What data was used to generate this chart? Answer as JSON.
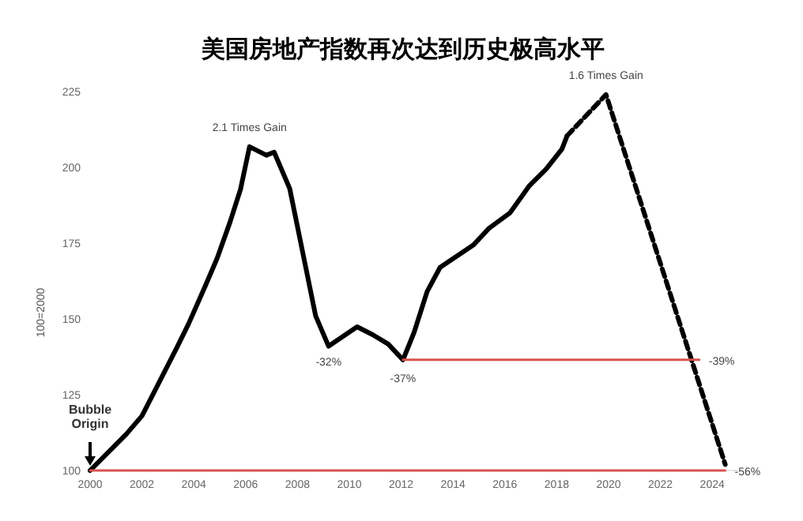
{
  "chart_data": {
    "type": "line",
    "title": "美国房地产指数再次达到历史极高水平",
    "ylabel": "100=2000",
    "xlim": [
      2000,
      2025
    ],
    "ylim": [
      100,
      225
    ],
    "xticks": [
      2000,
      2002,
      2004,
      2006,
      2008,
      2010,
      2012,
      2014,
      2016,
      2018,
      2020,
      2022,
      2024
    ],
    "yticks": [
      100,
      125,
      150,
      175,
      200,
      225
    ],
    "grid": false,
    "series": [
      {
        "color": "#000000",
        "line_style": "solid",
        "x": [
          2000,
          2001.4,
          2002,
          2002.6,
          2003.35,
          2003.8,
          2004.45,
          2004.9,
          2005.4,
          2005.8,
          2006.15,
          2006.8,
          2007.1,
          2007.7,
          2008.2,
          2008.7,
          2009.2,
          2010.3,
          2010.9,
          2011.5,
          2012.07,
          2012.5,
          2013,
          2013.5,
          2014.2,
          2014.8,
          2015.4,
          2016.2,
          2016.95,
          2017.6,
          2018.2,
          2018.4
        ],
        "values": [
          100,
          112,
          118,
          128,
          140.6,
          148.4,
          161,
          170,
          182,
          192.7,
          206.8,
          204,
          205,
          193,
          172,
          151,
          141,
          147.4,
          144.8,
          141.7,
          136.5,
          145.6,
          159,
          167,
          171,
          174.5,
          180,
          185,
          194,
          199.5,
          206,
          210.4
        ]
      },
      {
        "color": "#000000",
        "line_style": "dashed",
        "x": [
          2018.4,
          2019.9,
          2024.5
        ],
        "values": [
          210.4,
          224,
          102
        ]
      },
      {
        "color": "#d9534f",
        "line_style": "solid",
        "x": [
          2000,
          2024.5
        ],
        "values": [
          100,
          100
        ]
      },
      {
        "color": "#d9534f",
        "line_style": "solid",
        "x": [
          2012.07,
          2023.5
        ],
        "values": [
          136.5,
          136.5
        ]
      }
    ],
    "annotations": [
      {
        "text": "2.1 Times Gain",
        "x": 2006.15,
        "y": 206.8
      },
      {
        "text": "-32%",
        "x": 2009.2,
        "y": 141
      },
      {
        "text": "-37%",
        "x": 2012.07,
        "y": 136.5
      },
      {
        "text": "1.6 Times Gain",
        "x": 2019.9,
        "y": 224
      },
      {
        "text": "-39%",
        "x": 2023.5,
        "y": 136.5
      },
      {
        "text": "-56%",
        "x": 2024.5,
        "y": 100
      },
      "Bubble Origin"
    ]
  }
}
